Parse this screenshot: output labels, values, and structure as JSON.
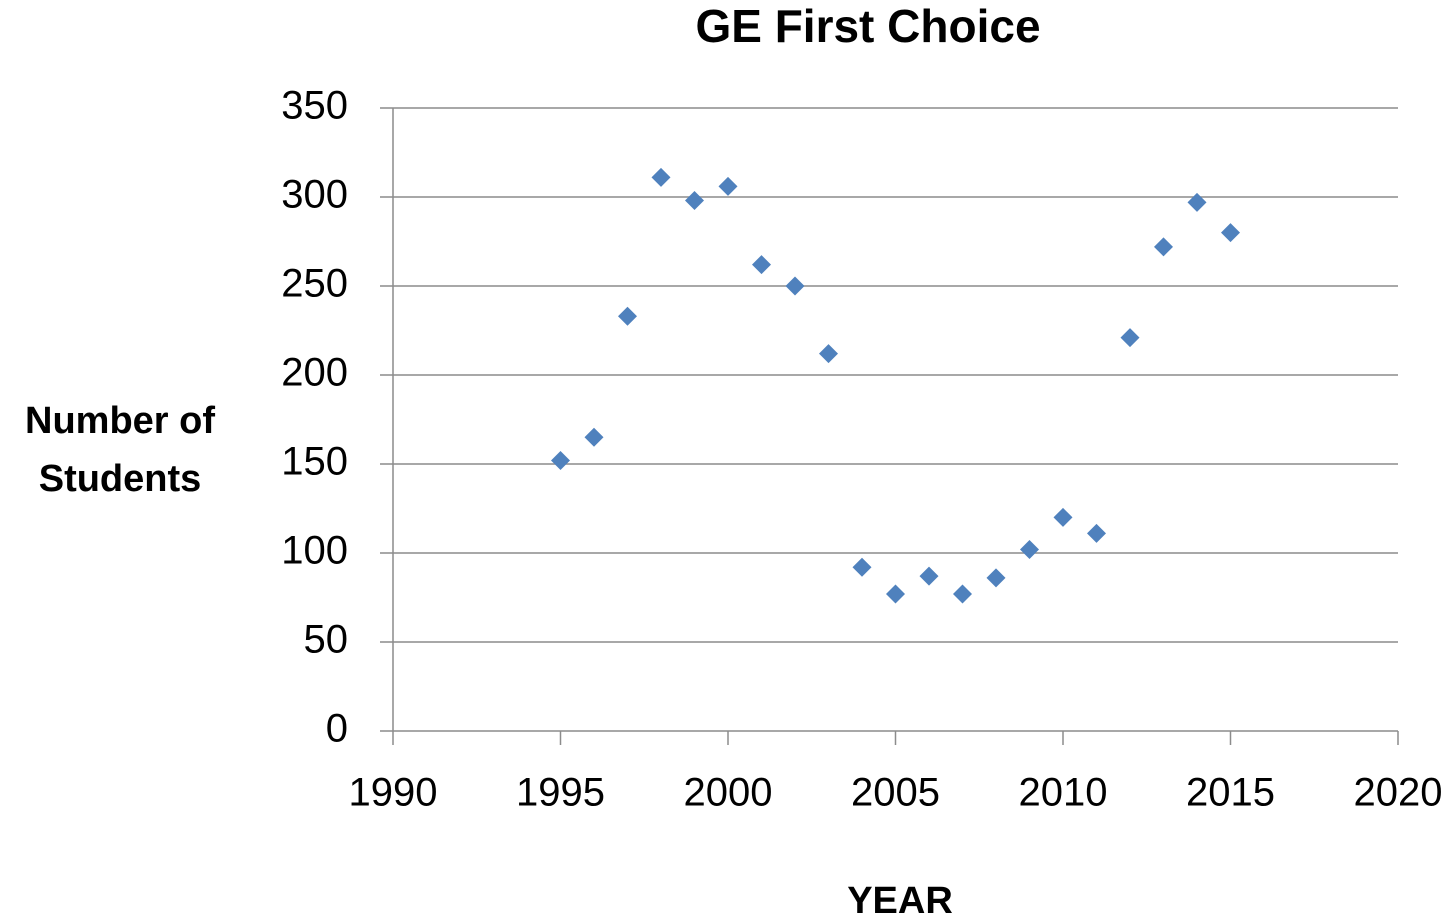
{
  "chart_data": {
    "type": "scatter",
    "title": "GE First Choice",
    "x_label": "YEAR",
    "y_label": "Number of Students",
    "series": [
      {
        "name": "GE First Choice",
        "color": "#4f81bd",
        "x": [
          1995,
          1996,
          1997,
          1998,
          1999,
          2000,
          2001,
          2002,
          2003,
          2004,
          2005,
          2006,
          2007,
          2008,
          2009,
          2010,
          2011,
          2012,
          2013,
          2014,
          2015
        ],
        "values": [
          152,
          165,
          233,
          311,
          298,
          306,
          262,
          250,
          212,
          92,
          77,
          87,
          77,
          86,
          102,
          120,
          111,
          221,
          272,
          297,
          280
        ]
      }
    ],
    "xlim": [
      1990,
      2020
    ],
    "xticks": [
      1990,
      1995,
      2000,
      2005,
      2010,
      2015,
      2020
    ],
    "ylim": [
      0,
      350
    ],
    "yticks": [
      0,
      50,
      100,
      150,
      200,
      250,
      300,
      350
    ],
    "grid": true
  }
}
